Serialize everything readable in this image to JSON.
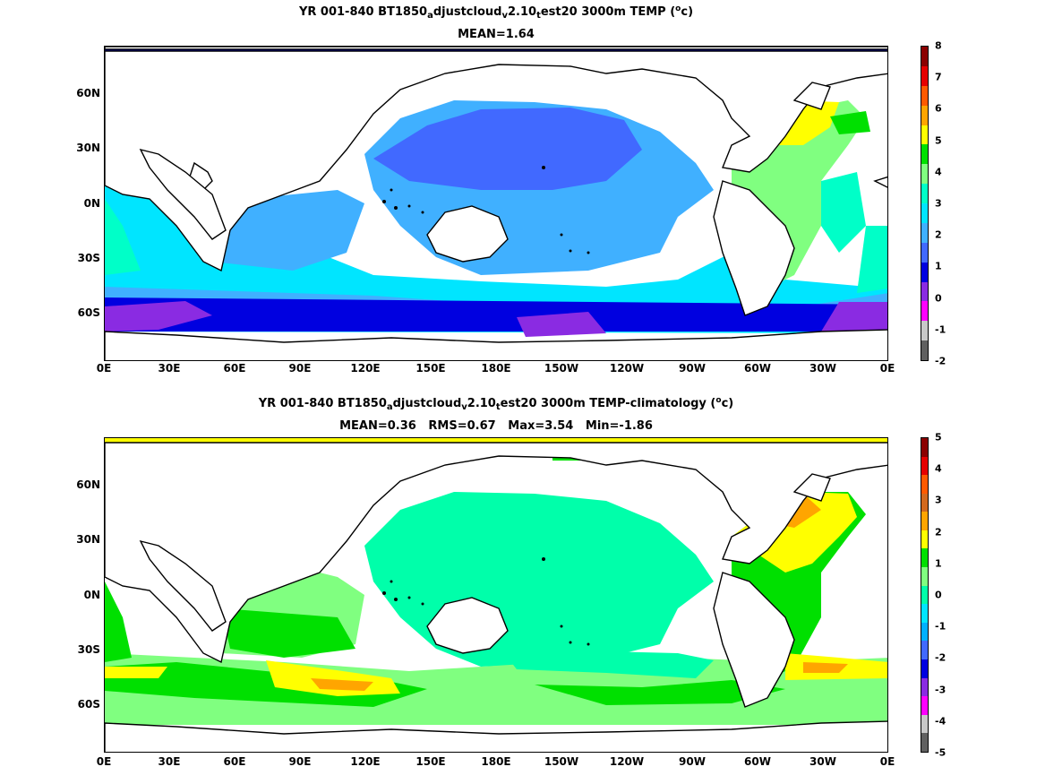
{
  "panels": [
    {
      "title_parts": [
        "YR 001-840 BT1850",
        "a",
        "djustcloud",
        "v",
        "2.10",
        "t",
        "est20 3000m TEMP (",
        "o",
        "c)"
      ],
      "stats": "MEAN=1.64",
      "colorbar_ticks": [
        "8",
        "7",
        "6",
        "5",
        "4",
        "3",
        "2",
        "1",
        "0",
        "-1",
        "-2"
      ],
      "colorbar_colors": [
        "#8b0000",
        "#e60000",
        "#ff5a00",
        "#ffa500",
        "#ffff00",
        "#00e000",
        "#80ff80",
        "#00ffc8",
        "#00e5ff",
        "#40b0ff",
        "#4169ff",
        "#0000e0",
        "#8a2be2",
        "#ff00ff",
        "#c8c8c8",
        "#606060"
      ]
    },
    {
      "title_parts": [
        "YR 001-840 BT1850",
        "a",
        "djustcloud",
        "v",
        "2.10",
        "t",
        "est20 3000m TEMP-climatology (",
        "o",
        "c)"
      ],
      "stats": "MEAN=0.36   RMS=0.67   Max=3.54   Min=-1.86",
      "colorbar_ticks": [
        "5",
        "4",
        "3",
        "2",
        "1",
        "0",
        "-1",
        "-2",
        "-3",
        "-4",
        "-5"
      ],
      "colorbar_colors": [
        "#8b0000",
        "#e60000",
        "#ff5a00",
        "#d2691e",
        "#ffa500",
        "#ffff00",
        "#00e000",
        "#80ff80",
        "#00ffaa",
        "#00e5ff",
        "#00b0ff",
        "#4169ff",
        "#0000e0",
        "#8a2be2",
        "#ff00ff",
        "#c8c8c8",
        "#606060"
      ]
    }
  ],
  "map": {
    "x_ticks": [
      "0E",
      "30E",
      "60E",
      "90E",
      "120E",
      "150E",
      "180E",
      "150W",
      "120W",
      "90W",
      "60W",
      "30W",
      "0E"
    ],
    "y_ticks": [
      "60N",
      "30N",
      "0N",
      "30S",
      "60S"
    ]
  }
}
